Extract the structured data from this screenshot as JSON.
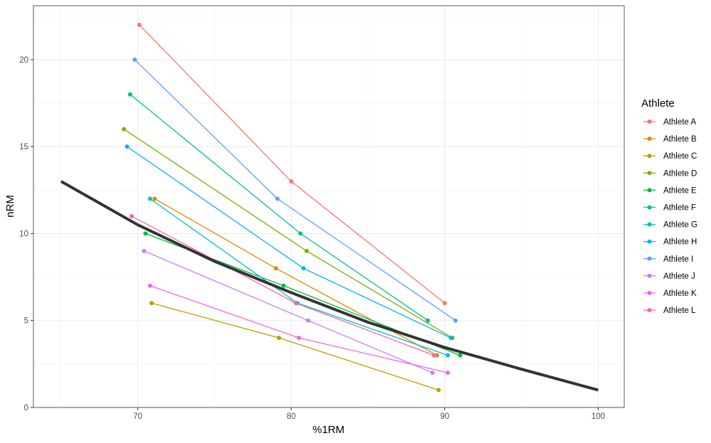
{
  "chart_data": {
    "type": "line",
    "xlabel": "%1RM",
    "ylabel": "nRM",
    "xlim": [
      63.2,
      101.7
    ],
    "ylim": [
      0,
      23.1
    ],
    "xticks": [
      70,
      80,
      90,
      100
    ],
    "yticks": [
      0,
      5,
      10,
      15,
      20
    ],
    "grid": true,
    "legend": {
      "title": "Athlete",
      "position": "right"
    },
    "series": [
      {
        "name": "Athlete A",
        "color": "#F8766D",
        "x": [
          70.1,
          80,
          90
        ],
        "y": [
          22,
          13,
          6
        ]
      },
      {
        "name": "Athlete B",
        "color": "#DE8C00",
        "x": [
          71.1,
          79,
          89.5
        ],
        "y": [
          12,
          8,
          3
        ]
      },
      {
        "name": "Athlete C",
        "color": "#B79F00",
        "x": [
          70.9,
          79.2,
          89.6
        ],
        "y": [
          6,
          4,
          1
        ]
      },
      {
        "name": "Athlete D",
        "color": "#7CAE00",
        "x": [
          69.1,
          81,
          90.5
        ],
        "y": [
          16,
          9,
          4
        ]
      },
      {
        "name": "Athlete E",
        "color": "#00BA38",
        "x": [
          70.5,
          79.5,
          91
        ],
        "y": [
          10,
          7,
          3
        ]
      },
      {
        "name": "Athlete F",
        "color": "#00C08B",
        "x": [
          69.5,
          80.6,
          88.9
        ],
        "y": [
          18,
          10,
          5
        ]
      },
      {
        "name": "Athlete G",
        "color": "#00BFC4",
        "x": [
          70.8,
          80.4,
          90.2
        ],
        "y": [
          12,
          6,
          3
        ]
      },
      {
        "name": "Athlete H",
        "color": "#00B4F0",
        "x": [
          69.3,
          80.8,
          90.4
        ],
        "y": [
          15,
          8,
          4
        ]
      },
      {
        "name": "Athlete I",
        "color": "#619CFF",
        "x": [
          69.8,
          79.1,
          90.7
        ],
        "y": [
          20,
          12,
          5
        ]
      },
      {
        "name": "Athlete J",
        "color": "#C77CFF",
        "x": [
          70.4,
          81.1,
          89.2
        ],
        "y": [
          9,
          5,
          2
        ]
      },
      {
        "name": "Athlete K",
        "color": "#F564E3",
        "x": [
          70.8,
          80.5,
          90.2
        ],
        "y": [
          7,
          4,
          2
        ]
      },
      {
        "name": "Athlete L",
        "color": "#FF64B0",
        "x": [
          69.6,
          80.3,
          89.3
        ],
        "y": [
          11,
          6,
          3
        ]
      }
    ],
    "curve": {
      "color": "#333333",
      "x": [
        65,
        70,
        75,
        80,
        85,
        90,
        95,
        100
      ],
      "y": [
        13,
        10.5,
        8.4,
        6.6,
        4.9,
        3.45,
        2.2,
        1
      ]
    }
  }
}
